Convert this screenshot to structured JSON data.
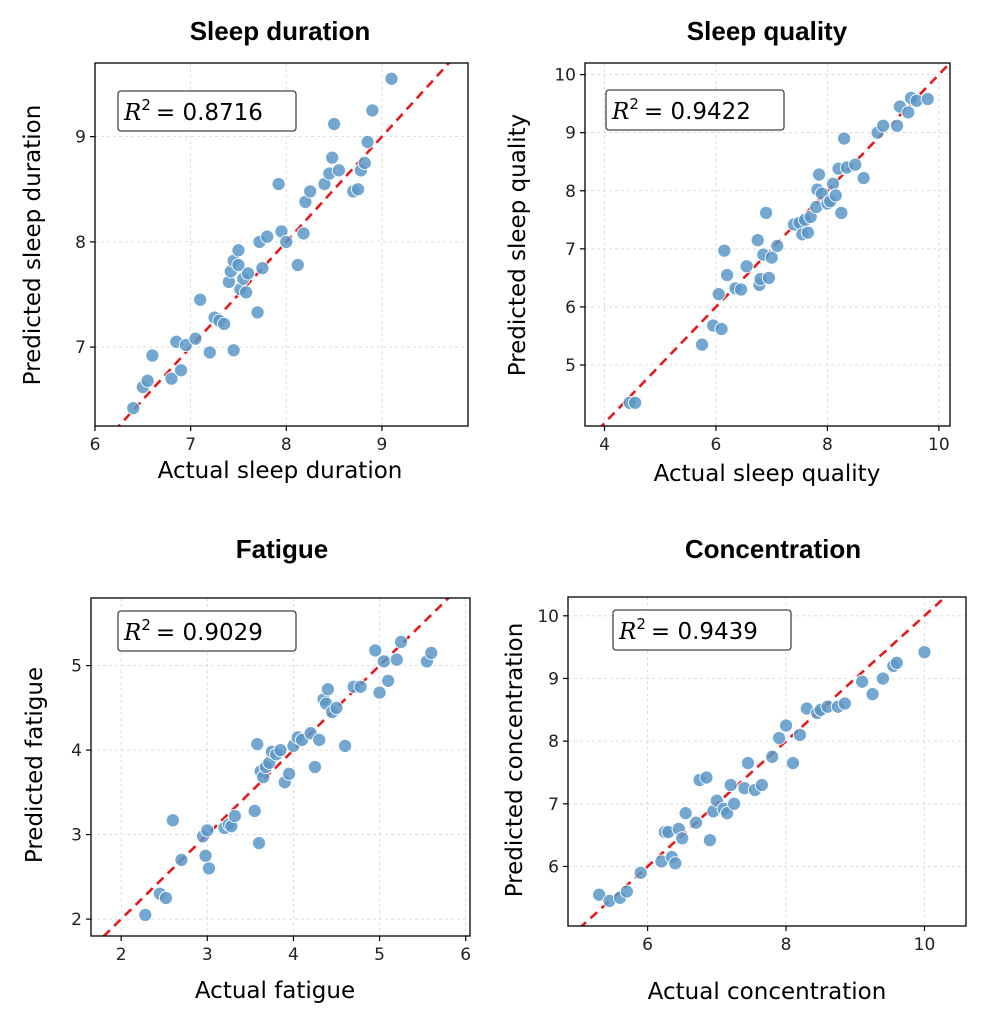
{
  "chart_data": [
    {
      "type": "scatter",
      "title": "Sleep duration",
      "xlabel": "Actual sleep duration",
      "ylabel": "Predicted sleep duration",
      "xlim": [
        6.0,
        9.9
      ],
      "ylim": [
        6.25,
        9.7
      ],
      "xticks": [
        6,
        7,
        8,
        9
      ],
      "yticks": [
        7,
        8,
        9
      ],
      "grid": true,
      "annotation": {
        "prefix": "R",
        "sup": "2",
        "value": "= 0.8716"
      },
      "reference_line": "y = x",
      "x": [
        6.4,
        6.5,
        6.55,
        6.6,
        6.8,
        6.85,
        6.9,
        6.95,
        7.05,
        7.1,
        7.2,
        7.25,
        7.3,
        7.35,
        7.4,
        7.42,
        7.45,
        7.45,
        7.5,
        7.5,
        7.52,
        7.55,
        7.58,
        7.6,
        7.7,
        7.72,
        7.75,
        7.8,
        7.92,
        7.95,
        8.0,
        8.12,
        8.18,
        8.2,
        8.25,
        8.4,
        8.45,
        8.48,
        8.5,
        8.55,
        8.7,
        8.75,
        8.78,
        8.82,
        8.85,
        8.9,
        9.1
      ],
      "y": [
        6.42,
        6.62,
        6.68,
        6.92,
        6.7,
        7.05,
        6.78,
        7.02,
        7.08,
        7.45,
        6.95,
        7.28,
        7.25,
        7.22,
        7.62,
        7.72,
        6.97,
        7.82,
        7.78,
        7.92,
        7.55,
        7.65,
        7.52,
        7.7,
        7.33,
        8.0,
        7.75,
        8.05,
        8.55,
        8.1,
        8.0,
        7.78,
        8.08,
        8.38,
        8.48,
        8.55,
        8.65,
        8.8,
        9.12,
        8.68,
        8.48,
        8.5,
        8.68,
        8.75,
        8.95,
        9.25,
        9.55
      ]
    },
    {
      "type": "scatter",
      "title": "Sleep quality",
      "xlabel": "Actual sleep quality",
      "ylabel": "Predicted sleep quality",
      "xlim": [
        3.65,
        10.2
      ],
      "ylim": [
        3.95,
        10.2
      ],
      "xticks": [
        4,
        6,
        8,
        10
      ],
      "yticks": [
        5,
        6,
        7,
        8,
        9,
        10
      ],
      "grid": true,
      "annotation": {
        "prefix": "R",
        "sup": "2",
        "value": "= 0.9422"
      },
      "reference_line": "y = x",
      "x": [
        4.45,
        4.55,
        5.75,
        5.95,
        6.05,
        6.1,
        6.15,
        6.2,
        6.35,
        6.45,
        6.55,
        6.75,
        6.78,
        6.8,
        6.85,
        6.9,
        6.95,
        7.0,
        7.1,
        7.4,
        7.5,
        7.55,
        7.6,
        7.65,
        7.7,
        7.8,
        7.82,
        7.85,
        7.9,
        8.0,
        8.05,
        8.1,
        8.15,
        8.2,
        8.25,
        8.3,
        8.35,
        8.5,
        8.65,
        8.9,
        9.0,
        9.25,
        9.3,
        9.45,
        9.5,
        9.6,
        9.8
      ],
      "y": [
        4.35,
        4.35,
        5.35,
        5.68,
        6.22,
        5.62,
        6.97,
        6.55,
        6.32,
        6.3,
        6.7,
        7.15,
        6.38,
        6.48,
        6.9,
        7.62,
        6.5,
        6.85,
        7.05,
        7.42,
        7.45,
        7.25,
        7.5,
        7.28,
        7.55,
        7.72,
        8.02,
        8.28,
        7.95,
        7.78,
        7.82,
        8.12,
        7.92,
        8.38,
        7.62,
        8.9,
        8.4,
        8.45,
        8.22,
        9.0,
        9.12,
        9.12,
        9.45,
        9.35,
        9.6,
        9.55,
        9.58
      ]
    },
    {
      "type": "scatter",
      "title": "Fatigue",
      "xlabel": "Actual fatigue",
      "ylabel": "Predicted fatigue",
      "xlim": [
        1.65,
        6.05
      ],
      "ylim": [
        1.8,
        5.8
      ],
      "xticks": [
        2,
        3,
        4,
        5,
        6
      ],
      "yticks": [
        2,
        3,
        4,
        5
      ],
      "grid": true,
      "annotation": {
        "prefix": "R",
        "sup": "2",
        "value": "= 0.9029"
      },
      "reference_line": "y = x",
      "x": [
        2.28,
        2.45,
        2.52,
        2.6,
        2.7,
        2.95,
        2.98,
        3.0,
        3.02,
        3.2,
        3.25,
        3.28,
        3.32,
        3.55,
        3.58,
        3.6,
        3.62,
        3.65,
        3.68,
        3.72,
        3.75,
        3.8,
        3.85,
        3.9,
        3.95,
        4.0,
        4.05,
        4.1,
        4.2,
        4.25,
        4.3,
        4.35,
        4.38,
        4.4,
        4.45,
        4.5,
        4.6,
        4.7,
        4.78,
        4.95,
        5.0,
        5.05,
        5.1,
        5.2,
        5.25,
        5.55,
        5.6
      ],
      "y": [
        2.05,
        2.3,
        2.25,
        3.17,
        2.7,
        2.98,
        2.75,
        3.05,
        2.6,
        3.08,
        3.12,
        3.1,
        3.22,
        3.28,
        4.07,
        2.9,
        3.75,
        3.68,
        3.8,
        3.85,
        3.98,
        3.95,
        4.0,
        3.62,
        3.72,
        4.05,
        4.15,
        4.12,
        4.2,
        3.8,
        4.12,
        4.6,
        4.55,
        4.72,
        4.45,
        4.5,
        4.05,
        4.75,
        4.75,
        5.18,
        4.68,
        5.05,
        4.82,
        5.07,
        5.28,
        5.05,
        5.15
      ]
    },
    {
      "type": "scatter",
      "title": "Concentration",
      "xlabel": "Actual concentration",
      "ylabel": "Predicted concentration",
      "xlim": [
        4.85,
        10.6
      ],
      "ylim": [
        5.05,
        10.3
      ],
      "xticks": [
        6,
        8,
        10
      ],
      "yticks": [
        6,
        7,
        8,
        9,
        10
      ],
      "grid": true,
      "annotation": {
        "prefix": "R",
        "sup": "2",
        "value": "= 0.9439"
      },
      "reference_line": "y = x",
      "x": [
        5.3,
        5.45,
        5.6,
        5.7,
        5.9,
        6.2,
        6.25,
        6.3,
        6.35,
        6.4,
        6.45,
        6.5,
        6.55,
        6.7,
        6.75,
        6.85,
        6.9,
        6.95,
        7.0,
        7.1,
        7.15,
        7.2,
        7.25,
        7.4,
        7.45,
        7.55,
        7.65,
        7.8,
        7.9,
        8.0,
        8.1,
        8.2,
        8.3,
        8.45,
        8.5,
        8.6,
        8.75,
        8.85,
        9.1,
        9.25,
        9.4,
        9.55,
        9.6,
        10.0
      ],
      "y": [
        5.55,
        5.45,
        5.5,
        5.6,
        5.9,
        6.08,
        6.55,
        6.55,
        6.15,
        6.05,
        6.6,
        6.45,
        6.85,
        6.7,
        7.38,
        7.42,
        6.42,
        6.88,
        7.05,
        6.92,
        6.85,
        7.3,
        7.0,
        7.25,
        7.65,
        7.22,
        7.3,
        7.75,
        8.05,
        8.25,
        7.65,
        8.1,
        8.52,
        8.45,
        8.5,
        8.55,
        8.55,
        8.6,
        8.95,
        8.75,
        9.0,
        9.2,
        9.25,
        9.42
      ]
    }
  ]
}
